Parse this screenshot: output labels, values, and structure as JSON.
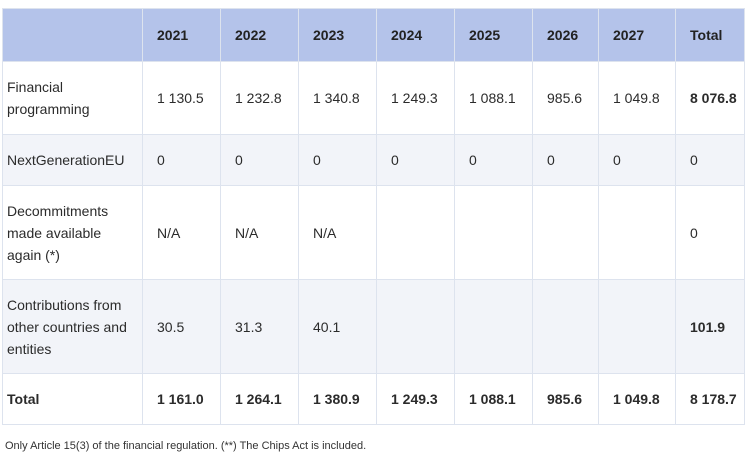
{
  "table": {
    "headers": [
      "",
      "2021",
      "2022",
      "2023",
      "2024",
      "2025",
      "2026",
      "2027",
      "Total"
    ],
    "rows": [
      {
        "label": "Financial programming",
        "values": [
          "1 130.5",
          "1 232.8",
          "1 340.8",
          "1 249.3",
          "1 088.1",
          "985.6",
          "1 049.8",
          "8 076.8"
        ]
      },
      {
        "label": "NextGenerationEU",
        "values": [
          "0",
          "0",
          "0",
          "0",
          "0",
          "0",
          "0",
          "0"
        ]
      },
      {
        "label": "Decommitments made available again (*)",
        "values": [
          "N/A",
          "N/A",
          "N/A",
          "",
          "",
          "",
          "",
          "0"
        ]
      },
      {
        "label": "Contributions from other countries and entities",
        "values": [
          "30.5",
          "31.3",
          "40.1",
          "",
          "",
          "",
          "",
          "101.9"
        ]
      },
      {
        "label": "Total",
        "values": [
          "1 161.0",
          "1 264.1",
          "1 380.9",
          "1 249.3",
          "1 088.1",
          "985.6",
          "1 049.8",
          "8 178.7"
        ]
      }
    ]
  },
  "footnote": "Only Article 15(3) of the financial regulation. (**) The Chips Act is included."
}
